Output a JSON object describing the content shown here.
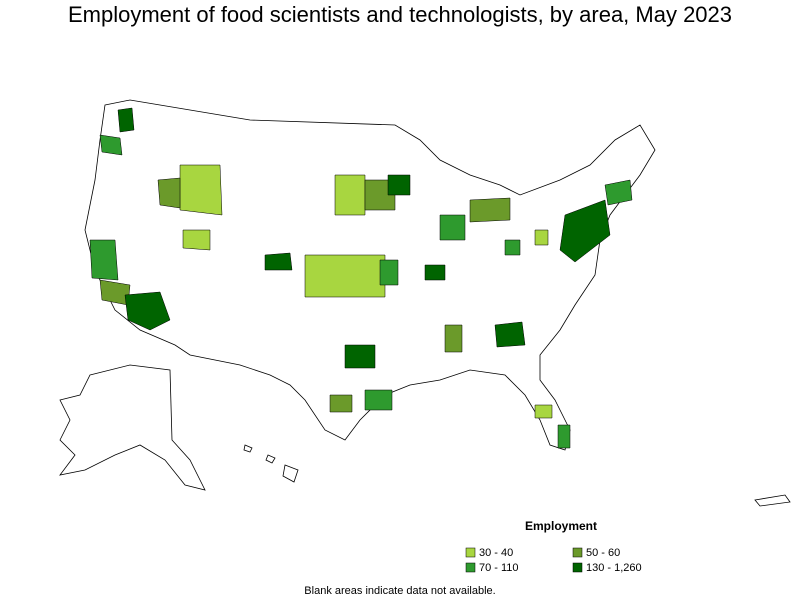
{
  "title": "Employment of food scientists and technologists, by area, May 2023",
  "legend": {
    "title": "Employment",
    "items": [
      {
        "label": "30 - 40",
        "color": "#a8d640"
      },
      {
        "label": "50 - 60",
        "color": "#6b9a2a"
      },
      {
        "label": "70 - 110",
        "color": "#2e9a2e"
      },
      {
        "label": "130 - 1,260",
        "color": "#006400"
      }
    ]
  },
  "footnote": "Blank areas indicate data not available."
}
